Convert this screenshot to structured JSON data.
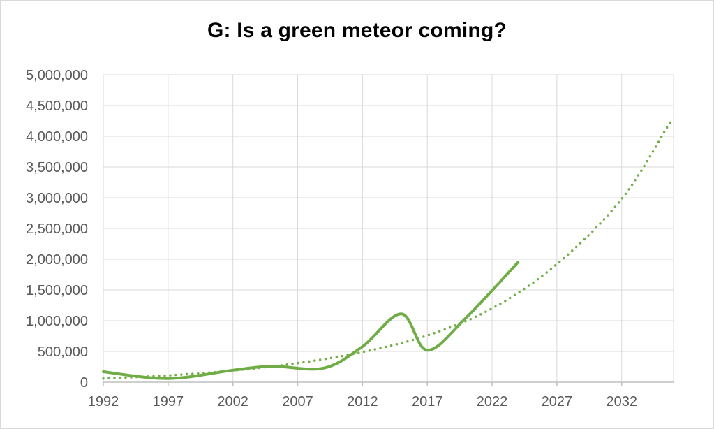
{
  "chart_data": {
    "type": "line",
    "title": "G: Is a green meteor coming?",
    "xlabel": "",
    "ylabel": "",
    "xlim": [
      1992,
      2036
    ],
    "ylim": [
      0,
      5000000
    ],
    "x_ticks": [
      1992,
      1997,
      2002,
      2007,
      2012,
      2017,
      2022,
      2027,
      2032
    ],
    "x_tick_labels": [
      "1992",
      "1997",
      "2002",
      "2007",
      "2012",
      "2017",
      "2022",
      "2027",
      "2032"
    ],
    "y_ticks": [
      0,
      500000,
      1000000,
      1500000,
      2000000,
      2500000,
      3000000,
      3500000,
      4000000,
      4500000,
      5000000
    ],
    "y_tick_labels": [
      "0",
      "500,000",
      "1,000,000",
      "1,500,000",
      "2,000,000",
      "2,500,000",
      "3,000,000",
      "3,500,000",
      "4,000,000",
      "4,500,000",
      "5,000,000"
    ],
    "grid": true,
    "legend": "none",
    "series": [
      {
        "style": "solid",
        "color": "#70ad47",
        "points": [
          [
            1992,
            170000
          ],
          [
            1997,
            60000
          ],
          [
            2002,
            195000
          ],
          [
            2005,
            260000
          ],
          [
            2009,
            230000
          ],
          [
            2012,
            580000
          ],
          [
            2015,
            1110000
          ],
          [
            2017,
            520000
          ],
          [
            2020,
            1050000
          ],
          [
            2024,
            1950000
          ]
        ]
      },
      {
        "style": "dotted",
        "color": "#70ad47",
        "points": [
          [
            1992,
            60000
          ],
          [
            1997,
            110000
          ],
          [
            2002,
            190000
          ],
          [
            2007,
            310000
          ],
          [
            2012,
            490000
          ],
          [
            2017,
            760000
          ],
          [
            2022,
            1200000
          ],
          [
            2027,
            1920000
          ],
          [
            2032,
            2980000
          ],
          [
            2035.8,
            4250000
          ]
        ]
      }
    ]
  }
}
